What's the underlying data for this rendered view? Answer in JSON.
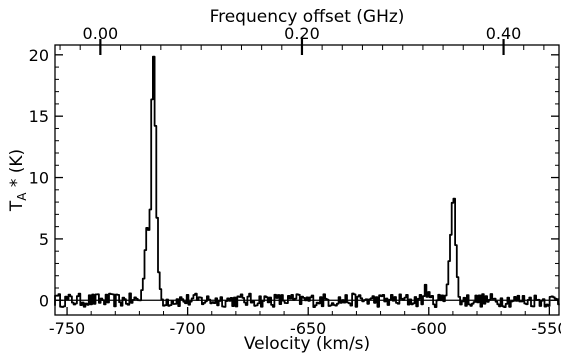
{
  "chart_data": {
    "type": "line",
    "top_axis": {
      "label": "Frequency offset (GHz)",
      "ticks": [
        0.0,
        0.2,
        0.4
      ],
      "tick_labels": [
        "0.00",
        "0.20",
        "0.40"
      ],
      "range": [
        -0.045,
        0.455
      ]
    },
    "x_axis": {
      "label": "Velocity (km/s)",
      "ticks": [
        -750,
        -700,
        -650,
        -600,
        -550
      ],
      "tick_labels": [
        "-750",
        "-700",
        "-650",
        "-600",
        "-550"
      ],
      "range": [
        -755,
        -546
      ]
    },
    "y_axis": {
      "label_main": "T",
      "label_sub": "A",
      "label_rest": " * (K)",
      "ticks": [
        0,
        5,
        10,
        15,
        20
      ],
      "tick_labels": [
        "0",
        "5",
        "10",
        "15",
        "20"
      ],
      "range": [
        -1.2,
        20.8
      ]
    },
    "zero_line": 0,
    "features": [
      {
        "center": -714.5,
        "peak": 20.3,
        "shoulder": {
          "x": -717,
          "y": 5.2
        }
      },
      {
        "center": -590.0,
        "peak": 8.0
      }
    ],
    "noise_rms": 0.4
  }
}
